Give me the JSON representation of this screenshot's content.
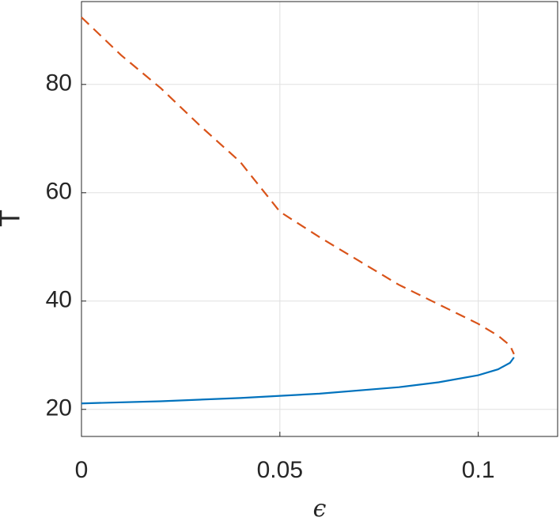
{
  "chart_data": {
    "type": "line",
    "xlabel": "ϵ",
    "ylabel": "T",
    "xlim": [
      0,
      0.12
    ],
    "xticks": [
      0,
      0.05,
      0.1
    ],
    "ylim": [
      15,
      95.3
    ],
    "yticks": [
      20,
      40,
      60,
      80
    ],
    "grid": true,
    "series": [
      {
        "color": "#0072bd",
        "linestyle": "solid",
        "x": [
          0,
          0.02,
          0.04,
          0.06,
          0.08,
          0.09,
          0.1,
          0.105,
          0.108,
          0.109
        ],
        "values": [
          21.1,
          21.5,
          22.1,
          22.9,
          24.1,
          25,
          26.3,
          27.4,
          28.6,
          29.6
        ]
      },
      {
        "color": "#d95319",
        "linestyle": "dashed",
        "x": [
          0,
          0.01,
          0.02,
          0.03,
          0.04,
          0.05,
          0.06,
          0.07,
          0.08,
          0.09,
          0.1,
          0.105,
          0.108,
          0.109
        ],
        "values": [
          92.4,
          85.4,
          79.3,
          72.3,
          65.7,
          56.5,
          51.8,
          47.4,
          43,
          39.4,
          35.8,
          33.6,
          31.8,
          30.2
        ]
      }
    ]
  }
}
